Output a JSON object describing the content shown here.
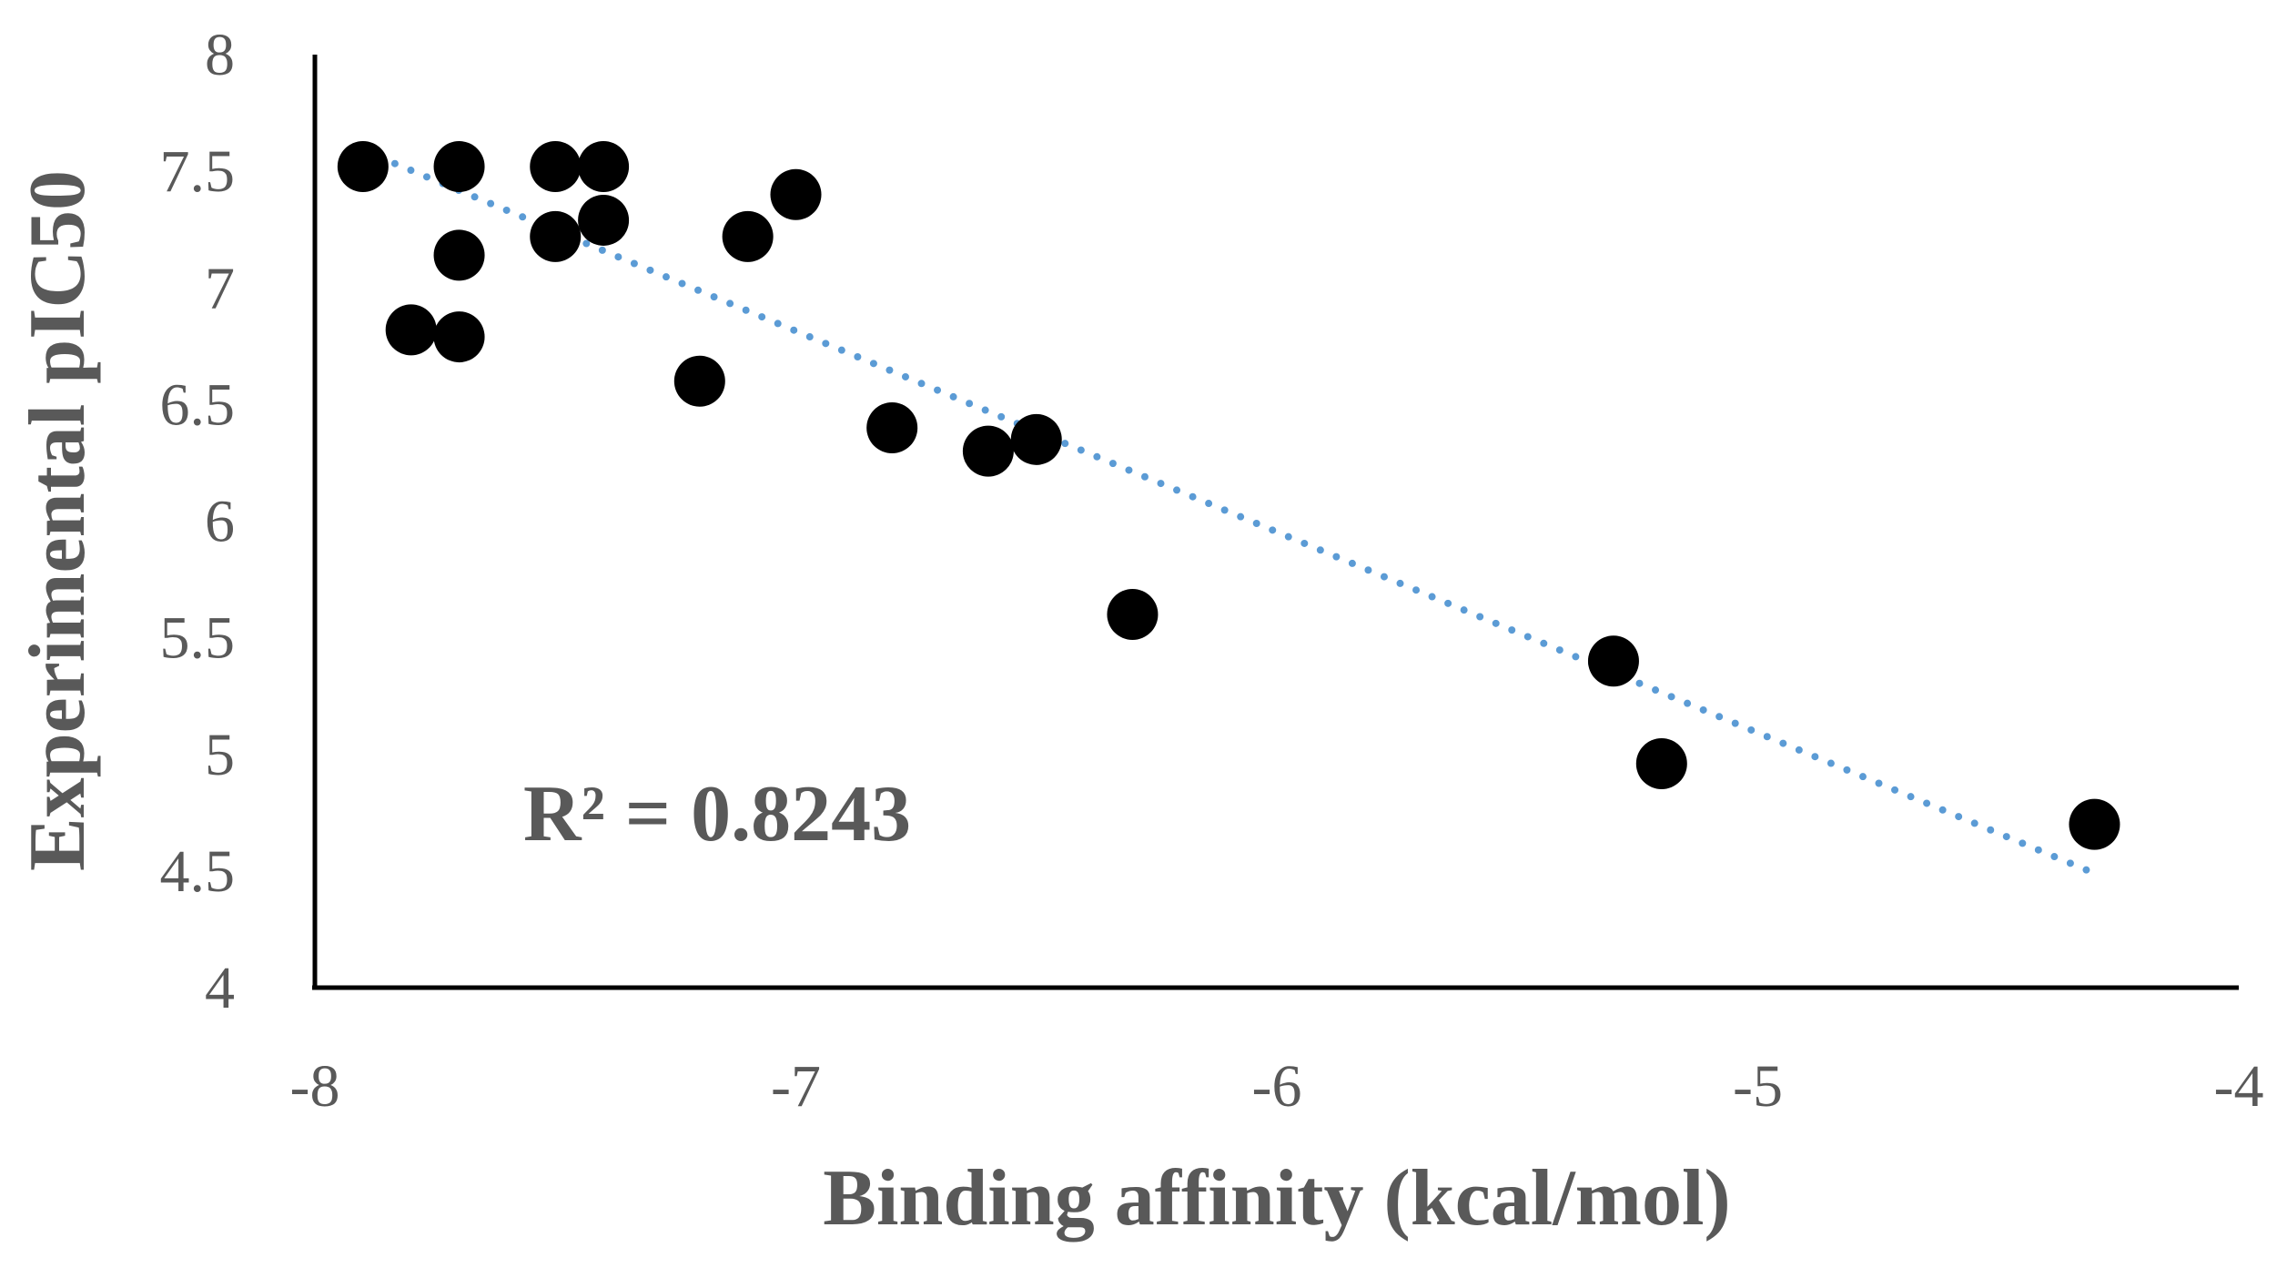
{
  "chart_data": {
    "type": "scatter",
    "title": "",
    "xlabel": "Binding affinity (kcal/mol)",
    "ylabel": "Experimental pIC50",
    "xlim": [
      -8,
      -4
    ],
    "ylim": [
      4,
      8
    ],
    "x_ticks": [
      -8,
      -7,
      -6,
      -5,
      -4
    ],
    "y_ticks": [
      4,
      4.5,
      5,
      5.5,
      6,
      6.5,
      7,
      7.5,
      8
    ],
    "x_tick_labels": [
      "-8",
      "-7",
      "-6",
      "-5",
      "-4"
    ],
    "y_tick_labels": [
      "4",
      "4.5",
      "5",
      "5.5",
      "6",
      "6.5",
      "7",
      "7.5",
      "8"
    ],
    "grid": false,
    "legend": "none",
    "marker_color": "#000000",
    "points": [
      {
        "x": -7.9,
        "y": 7.52
      },
      {
        "x": -7.8,
        "y": 6.82
      },
      {
        "x": -7.7,
        "y": 7.52
      },
      {
        "x": -7.7,
        "y": 7.14
      },
      {
        "x": -7.7,
        "y": 6.79
      },
      {
        "x": -7.5,
        "y": 7.52
      },
      {
        "x": -7.5,
        "y": 7.22
      },
      {
        "x": -7.4,
        "y": 7.52
      },
      {
        "x": -7.4,
        "y": 7.29
      },
      {
        "x": -7.2,
        "y": 6.6
      },
      {
        "x": -7.1,
        "y": 7.22
      },
      {
        "x": -7.0,
        "y": 7.4
      },
      {
        "x": -6.8,
        "y": 6.4
      },
      {
        "x": -6.6,
        "y": 6.3
      },
      {
        "x": -6.5,
        "y": 6.35
      },
      {
        "x": -6.3,
        "y": 5.6
      },
      {
        "x": -5.3,
        "y": 5.4
      },
      {
        "x": -5.2,
        "y": 4.96
      },
      {
        "x": -4.3,
        "y": 4.7
      }
    ],
    "trendline": {
      "type": "linear",
      "style": "dotted",
      "color": "#5B9BD5",
      "from": {
        "x": -7.9,
        "y": 7.59
      },
      "to": {
        "x": -4.3,
        "y": 4.49
      },
      "r2_label": "R² = 0.8243"
    }
  }
}
